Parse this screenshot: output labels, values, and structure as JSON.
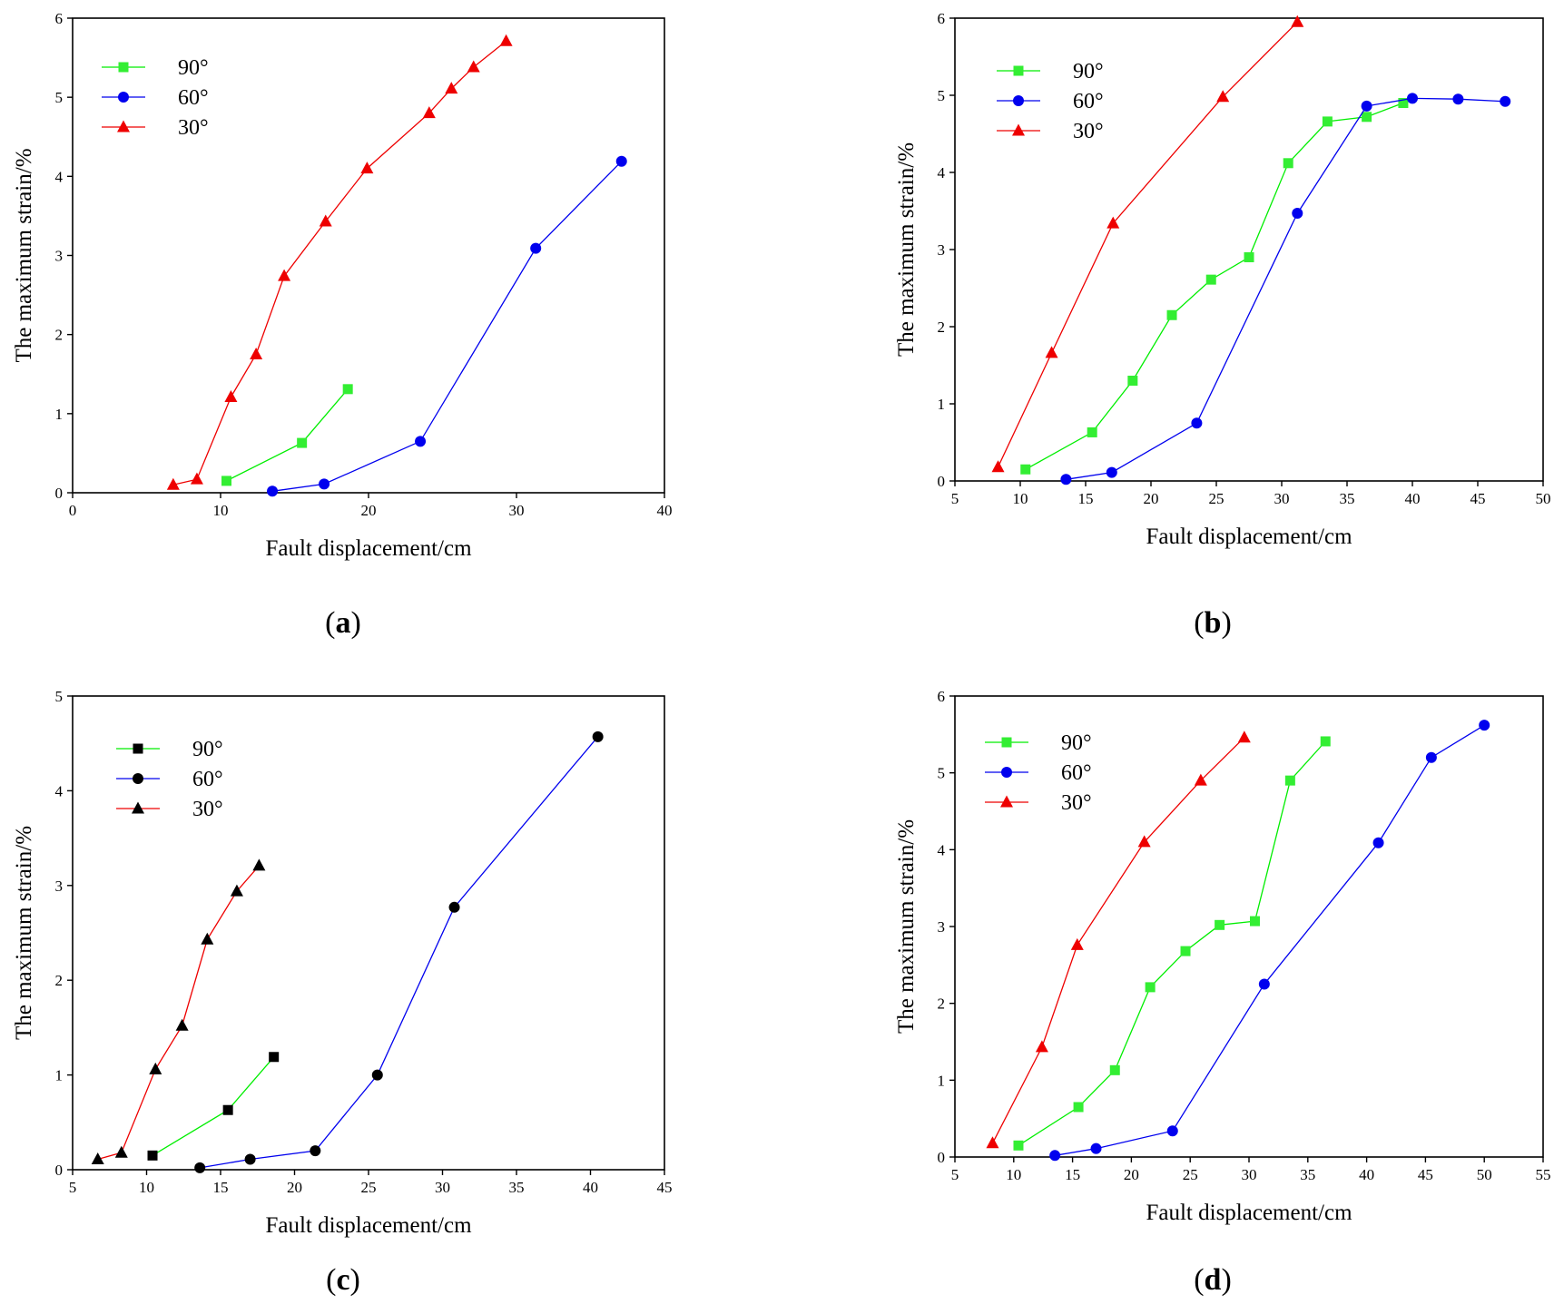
{
  "figure": {
    "panels_order": [
      "a",
      "b",
      "c",
      "d"
    ]
  },
  "chart_data": [
    {
      "id": "a",
      "panel_label": "(a)",
      "type": "line",
      "xlabel": "Fault displacement/cm",
      "ylabel": "The maximum strain/%",
      "xlim": [
        0,
        40
      ],
      "ylim": [
        0,
        6
      ],
      "xticks": [
        0,
        10,
        20,
        30,
        40
      ],
      "yticks": [
        0,
        1,
        2,
        3,
        4,
        5,
        6
      ],
      "legend_position": "top-left",
      "series": [
        {
          "name": "90°",
          "color": "#00ee00",
          "marker_color": "#33ee33",
          "marker": "square",
          "x": [
            10.4,
            15.5,
            18.6
          ],
          "y": [
            0.15,
            0.63,
            1.31
          ]
        },
        {
          "name": "60°",
          "color": "#0000ee",
          "marker_color": "#0000ee",
          "marker": "circle",
          "x": [
            13.5,
            17,
            23.5,
            31.3,
            37.1
          ],
          "y": [
            0.02,
            0.11,
            0.65,
            3.09,
            4.19
          ]
        },
        {
          "name": "30°",
          "color": "#ee0000",
          "marker_color": "#ee0000",
          "marker": "triangle",
          "x": [
            6.8,
            8.4,
            10.7,
            12.4,
            14.3,
            17.1,
            19.9,
            24.1,
            25.6,
            27.1,
            29.3
          ],
          "y": [
            0.1,
            0.17,
            1.21,
            1.75,
            2.74,
            3.43,
            4.1,
            4.8,
            5.11,
            5.38,
            5.71
          ]
        }
      ]
    },
    {
      "id": "b",
      "panel_label": "(b)",
      "type": "line",
      "xlabel": "Fault displacement/cm",
      "ylabel": "The maximum strain/%",
      "xlim": [
        5,
        50
      ],
      "ylim": [
        0,
        6
      ],
      "xticks": [
        5,
        10,
        15,
        20,
        25,
        30,
        35,
        40,
        45,
        50
      ],
      "yticks": [
        0,
        1,
        2,
        3,
        4,
        5,
        6
      ],
      "legend_position": "top-left",
      "series": [
        {
          "name": "90°",
          "color": "#00ee00",
          "marker_color": "#33ee33",
          "marker": "square",
          "x": [
            10.4,
            15.5,
            18.6,
            21.6,
            24.6,
            27.5,
            30.5,
            33.5,
            36.5,
            39.3
          ],
          "y": [
            0.15,
            0.63,
            1.3,
            2.15,
            2.61,
            2.9,
            4.12,
            4.66,
            4.72,
            4.9
          ]
        },
        {
          "name": "60°",
          "color": "#0000ee",
          "marker_color": "#0000ee",
          "marker": "circle",
          "x": [
            13.5,
            17,
            23.5,
            31.2,
            36.5,
            40,
            43.5,
            47.1
          ],
          "y": [
            0.02,
            0.11,
            0.75,
            3.47,
            4.86,
            4.96,
            4.95,
            4.92
          ]
        },
        {
          "name": "30°",
          "color": "#ee0000",
          "marker_color": "#ee0000",
          "marker": "triangle",
          "x": [
            8.3,
            12.4,
            17.1,
            25.5,
            31.2
          ],
          "y": [
            0.18,
            1.66,
            3.34,
            4.98,
            5.95
          ]
        }
      ]
    },
    {
      "id": "c",
      "panel_label": "(c)",
      "type": "line",
      "xlabel": "Fault displacement/cm",
      "ylabel": "The maximum strain/%",
      "xlim": [
        5,
        45
      ],
      "ylim": [
        0,
        5
      ],
      "xticks": [
        5,
        10,
        15,
        20,
        25,
        30,
        35,
        40,
        45
      ],
      "yticks": [
        0,
        1,
        2,
        3,
        4,
        5
      ],
      "legend_position": "top-left",
      "series": [
        {
          "name": "90°",
          "color": "#00ee00",
          "marker_color": "#000000",
          "marker": "square",
          "x": [
            10.4,
            15.5,
            18.6
          ],
          "y": [
            0.15,
            0.63,
            1.19
          ]
        },
        {
          "name": "60°",
          "color": "#0000ee",
          "marker_color": "#000000",
          "marker": "circle",
          "x": [
            13.6,
            17,
            21.4,
            25.6,
            30.8,
            40.5
          ],
          "y": [
            0.02,
            0.11,
            0.2,
            1.0,
            2.77,
            4.57
          ]
        },
        {
          "name": "30°",
          "color": "#ee0000",
          "marker_color": "#000000",
          "marker": "triangle",
          "x": [
            6.7,
            8.3,
            10.6,
            12.4,
            14.1,
            16.1,
            17.6
          ],
          "y": [
            0.11,
            0.18,
            1.06,
            1.52,
            2.43,
            2.94,
            3.21
          ]
        }
      ]
    },
    {
      "id": "d",
      "panel_label": "(d)",
      "type": "line",
      "xlabel": "Fault displacement/cm",
      "ylabel": "The maximum strain/%",
      "xlim": [
        5,
        55
      ],
      "ylim": [
        0,
        6
      ],
      "xticks": [
        5,
        10,
        15,
        20,
        25,
        30,
        35,
        40,
        45,
        50,
        55
      ],
      "yticks": [
        0,
        1,
        2,
        3,
        4,
        5,
        6
      ],
      "legend_position": "top-left",
      "series": [
        {
          "name": "90°",
          "color": "#00ee00",
          "marker_color": "#33ee33",
          "marker": "square",
          "x": [
            10.4,
            15.5,
            18.6,
            21.6,
            24.6,
            27.5,
            30.5,
            33.5,
            36.5
          ],
          "y": [
            0.15,
            0.65,
            1.13,
            2.21,
            2.68,
            3.02,
            3.07,
            4.9,
            5.41
          ]
        },
        {
          "name": "60°",
          "color": "#0000ee",
          "marker_color": "#0000ee",
          "marker": "circle",
          "x": [
            13.5,
            17,
            23.5,
            31.3,
            41,
            45.5,
            50
          ],
          "y": [
            0.02,
            0.11,
            0.34,
            2.25,
            4.09,
            5.2,
            5.62
          ]
        },
        {
          "name": "30°",
          "color": "#ee0000",
          "marker_color": "#ee0000",
          "marker": "triangle",
          "x": [
            8.2,
            12.4,
            15.4,
            21.1,
            25.9,
            29.6
          ],
          "y": [
            0.18,
            1.43,
            2.76,
            4.1,
            4.9,
            5.46
          ]
        }
      ]
    }
  ]
}
